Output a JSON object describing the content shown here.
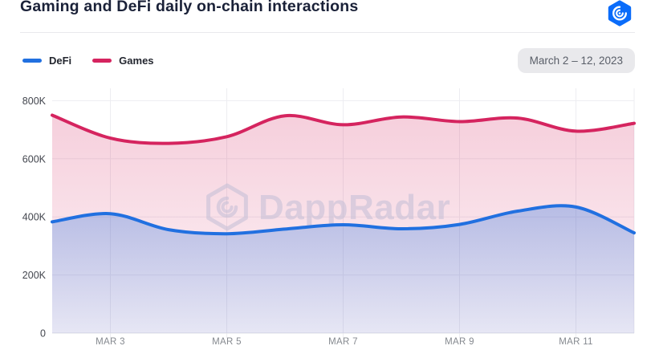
{
  "header": {
    "title": "Gaming and DeFi daily on-chain interactions",
    "logo_icon": "dappradar-logo"
  },
  "watermark": {
    "text": "DappRadar"
  },
  "chart_data": {
    "type": "area",
    "title": "Gaming and DeFi daily on-chain interactions",
    "date_range": "March 2 – 12, 2023",
    "x": [
      "Mar 2",
      "Mar 3",
      "Mar 4",
      "Mar 5",
      "Mar 6",
      "Mar 7",
      "Mar 8",
      "Mar 9",
      "Mar 10",
      "Mar 11",
      "Mar 12"
    ],
    "series": [
      {
        "name": "DeFi",
        "color": "#2170e0",
        "values": [
          383000,
          411000,
          356000,
          342000,
          358000,
          373000,
          359000,
          374000,
          420000,
          434000,
          345000
        ]
      },
      {
        "name": "Games",
        "color": "#d5245f",
        "values": [
          750000,
          671000,
          653000,
          676000,
          748000,
          717000,
          744000,
          728000,
          740000,
          695000,
          722000
        ]
      }
    ],
    "xlabel": "",
    "ylabel": "",
    "ylim": [
      0,
      850000
    ],
    "y_ticks": [
      {
        "value": 0,
        "label": "0"
      },
      {
        "value": 200000,
        "label": "200K"
      },
      {
        "value": 400000,
        "label": "400K"
      },
      {
        "value": 600000,
        "label": "600K"
      },
      {
        "value": 800000,
        "label": "800K"
      }
    ],
    "x_tick_indices": [
      1,
      3,
      5,
      7,
      9
    ],
    "x_tick_labels": [
      "MAR 3",
      "MAR 5",
      "MAR 7",
      "MAR 9",
      "MAR 11"
    ],
    "grid": true,
    "legend_position": "top-left"
  },
  "colors": {
    "title_text": "#1a2138",
    "y_label_text": "#43464e",
    "x_label_text": "#85898f",
    "gridline": "#ededf1",
    "watermark": "#c3bed6",
    "pill_bg": "#e9e9ec",
    "logo_blue": "#0a6cfa"
  }
}
